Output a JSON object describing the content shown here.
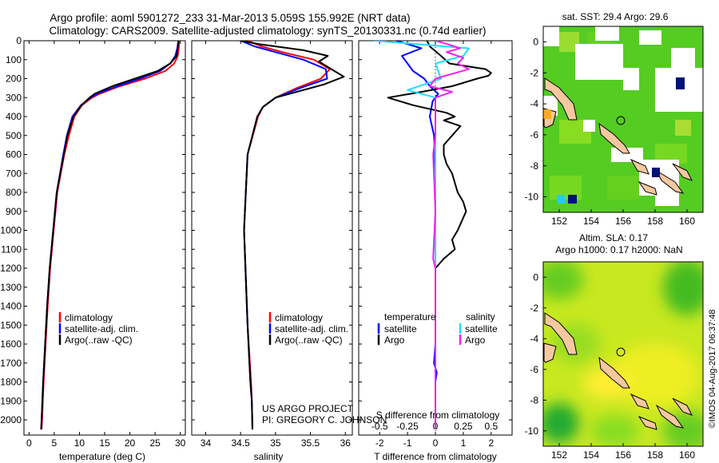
{
  "title": {
    "line1": "Argo profile: aoml 5901272_233 31-Mar-2013 5.059S 155.992E (NRT data)",
    "line2": "Climatology: CARS2009. Satellite-adjusted climatology: synTS_20130331.nc (0.74d earlier)"
  },
  "colors": {
    "climatology": "#ff0000",
    "satellite": "#0000ff",
    "argo": "#000000",
    "sal_satellite": "#22ddff",
    "sal_argo": "#ee22ee"
  },
  "chart_data": [
    {
      "type": "line",
      "id": "temperature",
      "xlabel": "temperature (deg C)",
      "ylabel": "",
      "xlim": [
        -1,
        31
      ],
      "ylim": [
        2080,
        0
      ],
      "xticks": [
        "0",
        "5",
        "10",
        "15",
        "20",
        "25",
        "30"
      ],
      "yticks": [
        "0",
        "100",
        "200",
        "300",
        "400",
        "500",
        "600",
        "700",
        "800",
        "900",
        "1000",
        "1100",
        "1200",
        "1300",
        "1400",
        "1500",
        "1600",
        "1700",
        "1800",
        "1900",
        "2000"
      ],
      "legend": [
        "climatology",
        "satellite-adj. clim.",
        "Argo(..raw -QC)"
      ],
      "series": [
        {
          "name": "climatology",
          "depth": [
            0,
            40,
            80,
            120,
            160,
            200,
            240,
            280,
            300,
            340,
            400,
            500,
            600,
            800,
            1000,
            1200,
            1400,
            1600,
            1800,
            2000,
            2050
          ],
          "values": [
            29.8,
            29.7,
            29.5,
            28.8,
            27,
            23,
            18,
            14,
            12.5,
            10.5,
            9,
            7.9,
            7,
            5.6,
            4.9,
            4.2,
            3.7,
            3.3,
            2.9,
            2.6,
            2.5
          ]
        },
        {
          "name": "satellite-adj. clim.",
          "depth": [
            0,
            40,
            80,
            120,
            160,
            200,
            240,
            280,
            300,
            340,
            400,
            500,
            600,
            800,
            1000,
            1200,
            1400,
            1600,
            1800,
            2000,
            2050
          ],
          "values": [
            29.6,
            29.4,
            29,
            28,
            26,
            22,
            17.5,
            13.5,
            12.2,
            10.3,
            8.6,
            7.5,
            6.8,
            5.5,
            4.8,
            4.1,
            3.6,
            3.2,
            2.8,
            2.5,
            2.4
          ]
        },
        {
          "name": "Argo(..raw -QC)",
          "depth": [
            0,
            40,
            80,
            120,
            160,
            200,
            240,
            280,
            300,
            340,
            400,
            500,
            600,
            800,
            1000,
            1200,
            1400,
            1600,
            1800,
            2000,
            2050
          ],
          "values": [
            29.6,
            29.5,
            29.3,
            28,
            25.5,
            21,
            16.5,
            13,
            12,
            10.4,
            8.8,
            7.6,
            6.9,
            5.5,
            4.8,
            4.1,
            3.6,
            3.2,
            2.8,
            2.5,
            2.4
          ]
        }
      ]
    },
    {
      "type": "line",
      "id": "salinity",
      "xlabel": "salinity",
      "xlim": [
        33.8,
        36.1
      ],
      "ylim": [
        2080,
        0
      ],
      "xticks": [
        "34",
        "34.5",
        "35",
        "35.5",
        "36"
      ],
      "legend": [
        "climatology",
        "satellite-adj. clim.",
        "Argo(..raw -QC)"
      ],
      "series": [
        {
          "name": "climatology",
          "depth": [
            0,
            30,
            60,
            100,
            150,
            200,
            250,
            300,
            350,
            400,
            600,
            1000,
            1500,
            1800,
            1900,
            2050
          ],
          "values": [
            34.6,
            34.8,
            35.1,
            35.55,
            35.78,
            35.65,
            35.3,
            35.0,
            34.82,
            34.75,
            34.6,
            34.55,
            34.6,
            34.65,
            34.66,
            34.67
          ]
        },
        {
          "name": "satellite-adj. clim.",
          "depth": [
            0,
            30,
            60,
            100,
            150,
            200,
            250,
            300,
            350,
            400,
            600,
            1000,
            1500,
            1800,
            1900,
            2050
          ],
          "values": [
            34.5,
            34.7,
            35.0,
            35.4,
            35.72,
            35.74,
            35.35,
            35.0,
            34.82,
            34.74,
            34.6,
            34.55,
            34.6,
            34.64,
            34.66,
            34.67
          ]
        },
        {
          "name": "Argo(..raw -QC)",
          "depth": [
            0,
            20,
            50,
            80,
            110,
            150,
            190,
            230,
            270,
            300,
            350,
            400,
            600,
            1000,
            1500,
            1800,
            1900,
            2050
          ],
          "values": [
            34.5,
            34.8,
            35.4,
            35.75,
            35.62,
            35.8,
            35.98,
            35.7,
            35.3,
            35.0,
            34.82,
            34.74,
            34.6,
            34.55,
            34.6,
            34.64,
            34.66,
            34.67
          ]
        }
      ]
    },
    {
      "type": "line",
      "id": "difference",
      "xlabel": "T difference from climatology",
      "xlabel2": "S difference from climatology",
      "xlim": [
        -2.75,
        2.75
      ],
      "ylim": [
        2080,
        0
      ],
      "xticks": [
        "-2",
        "-1",
        "0",
        "1",
        "2"
      ],
      "xticks2": [
        "-0.5",
        "-0.25",
        "0",
        "0.25",
        "0.5"
      ],
      "legend": {
        "temperature_header": "temperature",
        "salinity_header": "salinity",
        "temp_satellite": "satellite",
        "temp_argo": "Argo",
        "sal_satellite": "satellite",
        "sal_argo": "Argo"
      },
      "series": [
        {
          "name": "temperature satellite",
          "depth": [
            0,
            40,
            80,
            120,
            160,
            200,
            240,
            280,
            320,
            400,
            500,
            600,
            800,
            1000,
            1200,
            1600,
            1700,
            1750,
            1800,
            2050
          ],
          "values": [
            -1.4,
            -0.5,
            -1.2,
            -1.0,
            -0.8,
            -0.4,
            -0.2,
            0.1,
            -0.1,
            -0.2,
            -0.05,
            -0.02,
            0,
            0,
            0,
            0,
            -0.05,
            0.05,
            0,
            0
          ]
        },
        {
          "name": "temperature Argo",
          "depth": [
            0,
            30,
            80,
            120,
            150,
            170,
            185,
            200,
            240,
            270,
            300,
            340,
            380,
            400,
            420,
            450,
            500,
            550,
            600,
            650,
            700,
            800,
            850,
            900,
            1000,
            1050,
            1100,
            1150,
            1200,
            1300,
            2050
          ],
          "values": [
            -0.3,
            -0.2,
            0.2,
            0.5,
            1.8,
            2.0,
            1.9,
            1.5,
            0.6,
            -0.5,
            -1.7,
            -0.8,
            0.4,
            0.7,
            0.3,
            0.9,
            0.6,
            0.3,
            0.3,
            0.4,
            0.6,
            0.8,
            1.0,
            1.1,
            0.8,
            0.6,
            0.7,
            0.3,
            0.0,
            0.0,
            0.0
          ]
        },
        {
          "name": "salinity satellite",
          "depth": [
            0,
            40,
            80,
            120,
            200,
            260,
            300,
            400,
            600,
            1000,
            1400,
            2050
          ],
          "values": [
            -0.55,
            0.3,
            0.25,
            0.0,
            0.05,
            -0.25,
            0.0,
            0.0,
            0.0,
            0.0,
            0.0,
            0.0
          ]
        },
        {
          "name": "salinity Argo",
          "depth": [
            0,
            20,
            40,
            60,
            90,
            120,
            150,
            200,
            240,
            270,
            300,
            350,
            400,
            500,
            600,
            900,
            1150,
            1200,
            2050
          ],
          "values": [
            0.0,
            0.12,
            0.22,
            0.1,
            0.25,
            0.2,
            0.3,
            0.0,
            -0.05,
            0.15,
            0.0,
            0.0,
            0.0,
            0.0,
            -0.02,
            0.0,
            -0.02,
            0.0,
            0.0
          ]
        }
      ]
    }
  ],
  "annotation": {
    "project": "US ARGO PROJECT",
    "pi": "PI: GREGORY C. JOHNSON"
  },
  "maps": {
    "sst": {
      "title": "sat. SST: 29.4  Argo: 29.6",
      "xticks": [
        "152",
        "154",
        "156",
        "158",
        "160"
      ],
      "yticks": [
        "0",
        "-2",
        "-4",
        "-6",
        "-8",
        "-10"
      ]
    },
    "sla": {
      "title1": "Altim. SLA: 0.17",
      "title2": "Argo h1000: 0.17  h2000: NaN",
      "xticks": [
        "152",
        "154",
        "156",
        "158",
        "160"
      ],
      "yticks": [
        "0",
        "-2",
        "-4",
        "-6",
        "-8",
        "-10"
      ]
    },
    "stamp": "©IMOS 04-Aug-2017 06:37:48"
  }
}
